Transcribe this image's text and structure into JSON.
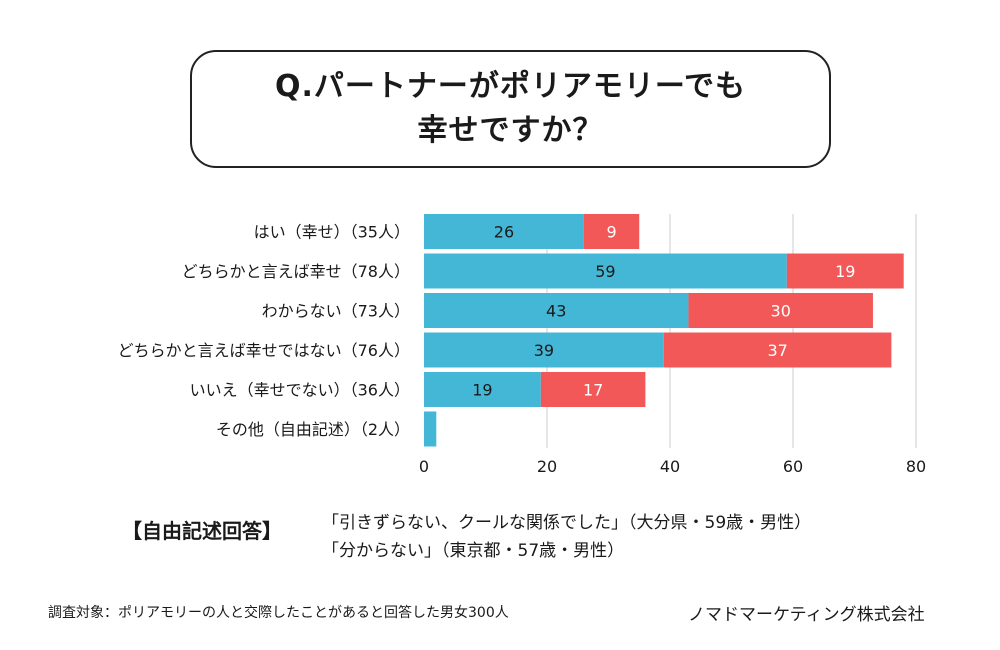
{
  "title": {
    "line1": "Q.パートナーがポリアモリーでも",
    "line2": "幸せですか？"
  },
  "colors": {
    "series_a": "#44b7d6",
    "series_b": "#f25858",
    "grid": "#cccccc"
  },
  "chart_data": {
    "type": "bar",
    "orientation": "horizontal",
    "stacked": true,
    "categories": [
      "はい（幸せ）（35人）",
      "どちらかと言えば幸せ（78人）",
      "わからない（73人）",
      "どちらかと言えば幸せではない（76人）",
      "いいえ（幸せでない）（36人）",
      "その他（自由記述）（2人）"
    ],
    "series": [
      {
        "values": [
          26,
          59,
          43,
          39,
          19,
          2
        ],
        "labels": [
          "26",
          "59",
          "43",
          "39",
          "19",
          ""
        ]
      },
      {
        "values": [
          9,
          19,
          30,
          37,
          17,
          0
        ],
        "labels": [
          "9",
          "19",
          "30",
          "37",
          "17",
          ""
        ]
      }
    ],
    "xlim": [
      0,
      80
    ],
    "xticks": [
      "0",
      "20",
      "40",
      "60",
      "80"
    ],
    "grid": true
  },
  "free_answers": {
    "heading": "【自由記述回答】",
    "items": [
      "「引きずらない、クールな関係でした」（大分県・59歳・男性）",
      "「分からない」（東京都・57歳・男性）"
    ]
  },
  "footer": {
    "survey": "調査対象：ポリアモリーの人と交際したことがあると回答した男女300人",
    "company": "ノマドマーケティング株式会社"
  }
}
